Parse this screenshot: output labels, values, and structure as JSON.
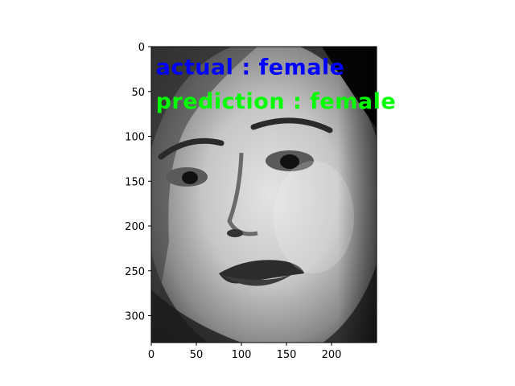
{
  "chart_data": {
    "type": "image",
    "xlim": [
      0,
      250
    ],
    "ylim": [
      330,
      0
    ],
    "x_ticks": [
      0,
      50,
      100,
      150,
      200
    ],
    "y_ticks": [
      0,
      50,
      100,
      150,
      200,
      250,
      300
    ],
    "image_content": "grayscale-face",
    "annotations": [
      {
        "text": "actual : female",
        "x": 5,
        "y": 22,
        "color": "#0000ff"
      },
      {
        "text": "prediction : female",
        "x": 5,
        "y": 60,
        "color": "#00ff00"
      }
    ]
  },
  "colors": {
    "background": "#ffffff",
    "axis": "#000000"
  }
}
